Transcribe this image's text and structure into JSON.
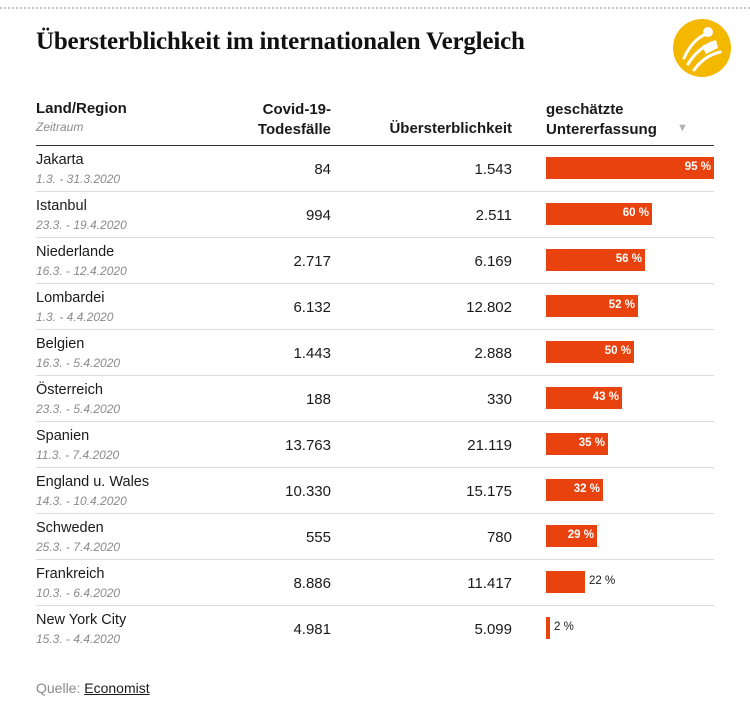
{
  "title": "Übersterblichkeit im internationalen Vergleich",
  "brand_color": "#f5b800",
  "bar_color": "#e8420e",
  "columns": {
    "land": "Land/Region",
    "zeitraum": "Zeitraum",
    "covid_line1": "Covid-19-",
    "covid_line2": "Todesfälle",
    "uebersterblichkeit": "Übersterblichkeit",
    "geschaetzt_line1": "geschätzte",
    "geschaetzt_line2": "Untererfassung",
    "sort_icon": "▼"
  },
  "source": {
    "label": "Quelle:",
    "link_text": "Economist"
  },
  "chart_data": {
    "type": "table",
    "title": "Übersterblichkeit im internationalen Vergleich",
    "bar_max": 95,
    "rows": [
      {
        "name": "Jakarta",
        "period": "1.3. - 31.3.2020",
        "covid": "84",
        "ueber": "1.543",
        "pct": 95,
        "pct_label": "95 %"
      },
      {
        "name": "Istanbul",
        "period": "23.3. - 19.4.2020",
        "covid": "994",
        "ueber": "2.511",
        "pct": 60,
        "pct_label": "60 %"
      },
      {
        "name": "Niederlande",
        "period": "16.3. - 12.4.2020",
        "covid": "2.717",
        "ueber": "6.169",
        "pct": 56,
        "pct_label": "56 %"
      },
      {
        "name": "Lombardei",
        "period": "1.3. - 4.4.2020",
        "covid": "6.132",
        "ueber": "12.802",
        "pct": 52,
        "pct_label": "52 %"
      },
      {
        "name": "Belgien",
        "period": "16.3. - 5.4.2020",
        "covid": "1.443",
        "ueber": "2.888",
        "pct": 50,
        "pct_label": "50 %"
      },
      {
        "name": "Österreich",
        "period": "23.3. - 5.4.2020",
        "covid": "188",
        "ueber": "330",
        "pct": 43,
        "pct_label": "43 %"
      },
      {
        "name": "Spanien",
        "period": "11.3. - 7.4.2020",
        "covid": "13.763",
        "ueber": "21.119",
        "pct": 35,
        "pct_label": "35 %"
      },
      {
        "name": "England u. Wales",
        "period": "14.3. - 10.4.2020",
        "covid": "10.330",
        "ueber": "15.175",
        "pct": 32,
        "pct_label": "32 %"
      },
      {
        "name": "Schweden",
        "period": "25.3. - 7.4.2020",
        "covid": "555",
        "ueber": "780",
        "pct": 29,
        "pct_label": "29 %"
      },
      {
        "name": "Frankreich",
        "period": "10.3. - 6.4.2020",
        "covid": "8.886",
        "ueber": "11.417",
        "pct": 22,
        "pct_label": "22 %"
      },
      {
        "name": "New York City",
        "period": "15.3. - 4.4.2020",
        "covid": "4.981",
        "ueber": "5.099",
        "pct": 2,
        "pct_label": "2 %"
      }
    ]
  }
}
